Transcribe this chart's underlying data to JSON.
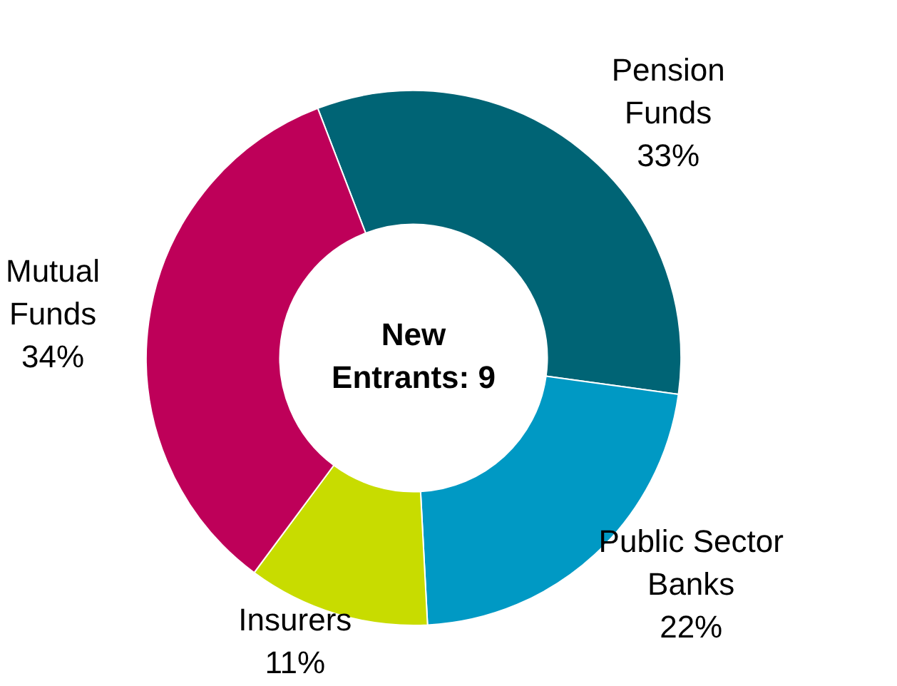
{
  "chart_data": {
    "type": "donut",
    "categories": [
      "Pension Funds",
      "Public Sector Banks",
      "Insurers",
      "Mutual Funds"
    ],
    "values": [
      33,
      22,
      11,
      34
    ],
    "value_labels": [
      "33%",
      "22%",
      "11%",
      "34%"
    ],
    "colors": [
      "#006475",
      "#0099c4",
      "#c8dc00",
      "#be0059"
    ],
    "annotations": [
      "New Entrants: 9"
    ],
    "legend": false
  }
}
